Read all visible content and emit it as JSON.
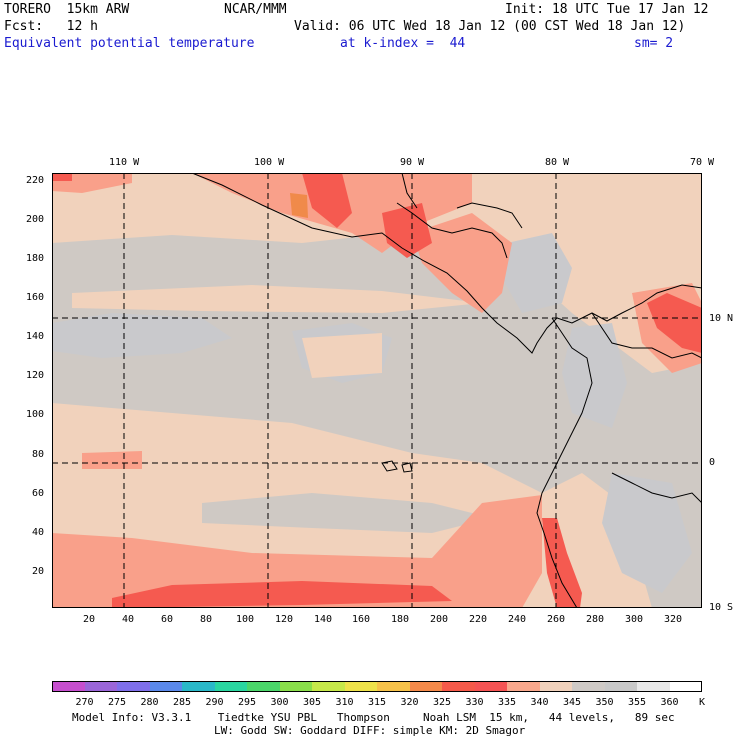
{
  "header": {
    "model": "TORERO  15km ARW",
    "org": "NCAR/MMM",
    "init": "Init: 18 UTC Tue 17 Jan 12",
    "fcst": "Fcst:   12 h",
    "valid": "Valid: 06 UTC Wed 18 Jan 12 (00 CST Wed 18 Jan 12)",
    "field": "Equivalent potential temperature",
    "level": "at k-index =  44",
    "smooth": "sm= 2"
  },
  "map": {
    "top_lon_labels": [
      "110 W",
      "100 W",
      "90 W",
      "80 W",
      "70 W"
    ],
    "right_lat_labels": [
      "10 N",
      "0",
      "10 S"
    ],
    "left_y_ticks": [
      "220",
      "200",
      "180",
      "160",
      "140",
      "120",
      "100",
      "80",
      "60",
      "40",
      "20"
    ],
    "bottom_x_ticks": [
      "20",
      "40",
      "60",
      "80",
      "100",
      "120",
      "140",
      "160",
      "180",
      "200",
      "220",
      "240",
      "260",
      "280",
      "300",
      "320"
    ],
    "grid_x_axis_range": [
      0,
      335
    ],
    "grid_y_axis_range": [
      0,
      225
    ],
    "meridians_grid_x": [
      38,
      111,
      185,
      258
    ],
    "parallels_grid_y": [
      150,
      76
    ]
  },
  "colorbar": {
    "labels": [
      "270",
      "275",
      "280",
      "285",
      "290",
      "295",
      "300",
      "305",
      "310",
      "315",
      "320",
      "325",
      "330",
      "335",
      "340",
      "345",
      "350",
      "355",
      "360",
      "K"
    ],
    "colors": [
      "#c64fce",
      "#9b66d8",
      "#7f6fea",
      "#5b89ea",
      "#2ab8c8",
      "#2ad6a0",
      "#4bd66a",
      "#8ade4b",
      "#c6e84a",
      "#eee24a",
      "#f6c24a",
      "#f48a4a",
      "#f55a4a",
      "#f55454",
      "#f9a88c",
      "#f1d2bc",
      "#cfcac6",
      "#c8c8c8",
      "#e8e8e8",
      "#ffffff"
    ]
  },
  "footer": {
    "line1": "Model Info: V3.3.1    Tiedtke YSU PBL   Thompson     Noah LSM  15 km,   44 levels,   89 sec",
    "line2": "LW: Godd SW: Goddard DIFF: simple KM: 2D Smagor"
  },
  "colors": {
    "field_peach": "#f1d2bc",
    "field_gray": "#cfc9c4",
    "field_lightgray": "#c9c9cc",
    "field_salmon": "#f9a08a",
    "field_red": "#f55a50",
    "field_orange": "#f08a4a",
    "title_blue": "#1a1ad0"
  }
}
